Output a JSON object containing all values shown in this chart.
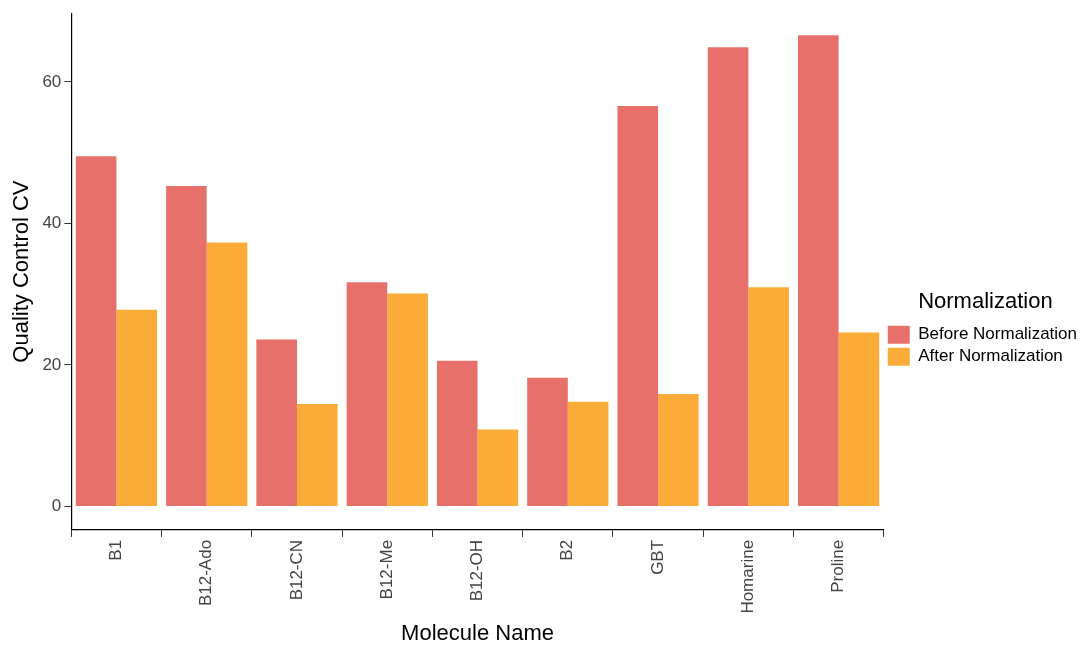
{
  "chart_data": {
    "type": "bar",
    "xlabel": "Molecule Name",
    "ylabel": "Quality Control CV",
    "legend_title": "Normalization",
    "legend": "right",
    "categories": [
      "B1",
      "B12-Ado",
      "B12-CN",
      "B12-Me",
      "B12-OH",
      "B2",
      "GBT",
      "Homarine",
      "Proline"
    ],
    "series": [
      {
        "name": "Before Normalization",
        "color": "#e8706a",
        "values": [
          49.5,
          45.3,
          23.6,
          31.7,
          20.6,
          18.2,
          56.6,
          64.9,
          66.6
        ]
      },
      {
        "name": "After Normalization",
        "color": "#fbac38",
        "values": [
          27.8,
          37.3,
          14.5,
          30.1,
          10.9,
          14.8,
          15.9,
          31.0,
          24.6
        ]
      }
    ],
    "ylim": [
      -3.3,
      69.7
    ],
    "yticks": [
      0,
      20,
      40,
      60
    ]
  }
}
